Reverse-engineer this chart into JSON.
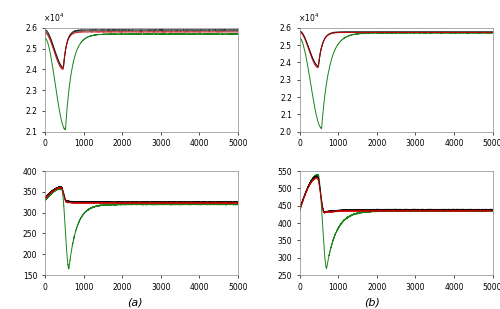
{
  "title_a": "(a)",
  "title_b": "(b)",
  "xlim": [
    0,
    5000
  ],
  "subplot_top_left": {
    "ylim": [
      21000,
      26000
    ],
    "ytick_vals": [
      21000,
      22000,
      23000,
      24000,
      25000,
      26000
    ],
    "ytick_labels": [
      "2.1",
      "2.2",
      "2.3",
      "2.4",
      "2.5",
      "2.6"
    ]
  },
  "subplot_top_right": {
    "ylim": [
      20000,
      26000
    ],
    "ytick_vals": [
      20000,
      21000,
      22000,
      23000,
      24000,
      25000,
      26000
    ],
    "ytick_labels": [
      "2.0",
      "2.1",
      "2.2",
      "2.3",
      "2.4",
      "2.5",
      "2.6"
    ]
  },
  "subplot_bot_left": {
    "ylim": [
      150,
      400
    ],
    "ytick_vals": [
      150,
      200,
      250,
      300,
      350,
      400
    ],
    "ytick_labels": [
      "150",
      "200",
      "250",
      "300",
      "350",
      "400"
    ]
  },
  "subplot_bot_right": {
    "ylim": [
      250,
      550
    ],
    "ytick_vals": [
      250,
      300,
      350,
      400,
      450,
      500,
      550
    ],
    "ytick_labels": [
      "250",
      "300",
      "350",
      "400",
      "450",
      "500",
      "550"
    ]
  },
  "xtick_vals": [
    0,
    1000,
    2000,
    3000,
    4000,
    5000
  ],
  "xtick_labels": [
    "0",
    "1000",
    "2000",
    "3000",
    "4000",
    "5000"
  ],
  "line_colors": [
    "#007700",
    "#000000",
    "#cc0000",
    "#555555"
  ],
  "bg_color": "#ffffff"
}
